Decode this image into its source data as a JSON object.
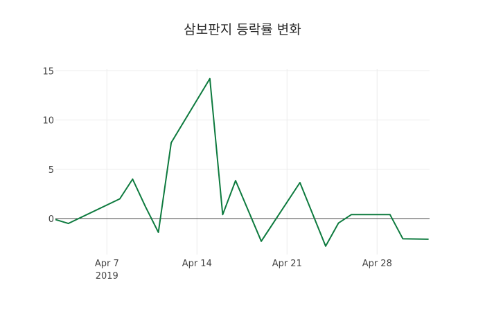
{
  "chart_data": {
    "type": "line",
    "title": "삼보판지 등락률 변화",
    "xlabel": "",
    "ylabel": "",
    "x": [
      "2019-04-03",
      "2019-04-04",
      "2019-04-08",
      "2019-04-09",
      "2019-04-10",
      "2019-04-11",
      "2019-04-12",
      "2019-04-15",
      "2019-04-16",
      "2019-04-17",
      "2019-04-19",
      "2019-04-22",
      "2019-04-24",
      "2019-04-25",
      "2019-04-26",
      "2019-04-29",
      "2019-04-30",
      "2019-05-02"
    ],
    "series": [
      {
        "name": "등락률",
        "color": "#0d7a3e",
        "values": [
          -0.1,
          -0.5,
          2.0,
          4.0,
          1.2,
          -1.4,
          7.7,
          14.2,
          0.4,
          3.85,
          -2.3,
          3.65,
          -2.8,
          -0.45,
          0.4,
          0.4,
          -2.05,
          -2.1
        ]
      }
    ],
    "yticks": [
      0,
      5,
      10,
      15
    ],
    "ytick_labels": [
      "0",
      "5",
      "10",
      "15"
    ],
    "xtick_labels": [
      "Apr 7",
      "Apr 14",
      "Apr 21",
      "Apr 28"
    ],
    "xtick_sublabel": "2019",
    "ylim": [
      -3.4,
      15.8
    ],
    "grid": true,
    "legend": false
  }
}
